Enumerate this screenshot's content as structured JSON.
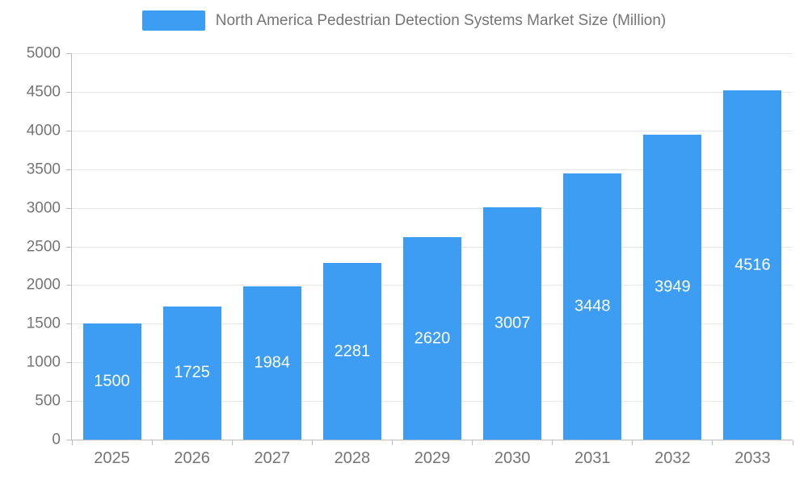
{
  "colors": {
    "bar": "#3d9df3",
    "title": "#757575",
    "tick_label": "#757575",
    "grid": "#e6e6e6",
    "axis": "#bdbdbd",
    "data_label": "#ffffff",
    "background": "#ffffff"
  },
  "chart_data": {
    "type": "bar",
    "title": "North America Pedestrian Detection Systems Market Size (Million)",
    "categories": [
      "2025",
      "2026",
      "2027",
      "2028",
      "2029",
      "2030",
      "2031",
      "2032",
      "2033"
    ],
    "values": [
      1500,
      1725,
      1984,
      2281,
      2620,
      3007,
      3448,
      3949,
      4516
    ],
    "xlabel": "",
    "ylabel": "",
    "ylim": [
      0,
      5000
    ],
    "y_ticks": [
      0,
      500,
      1000,
      1500,
      2000,
      2500,
      3000,
      3500,
      4000,
      4500,
      5000
    ],
    "grid": true,
    "legend_position": "top-center",
    "data_labels": "inside-center-white"
  }
}
